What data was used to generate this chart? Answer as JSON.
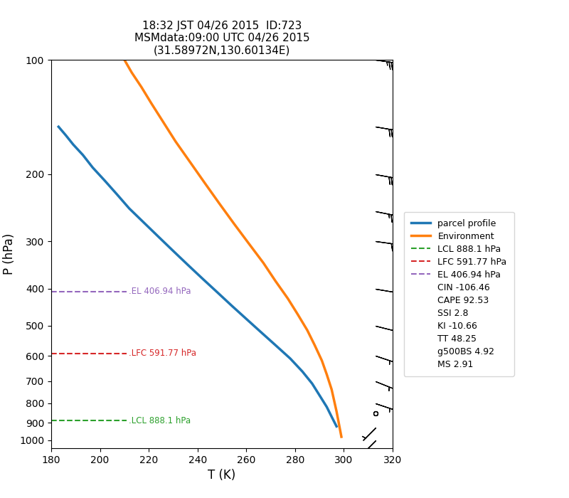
{
  "title_line1": "18:32 JST 04/26 2015  ID:723",
  "title_line2": "MSMdata:09:00 UTC 04/26 2015",
  "title_line3": "(31.58972N,130.60134E)",
  "xlabel": "T (K)",
  "ylabel": "P (hPa)",
  "xlim": [
    180,
    320
  ],
  "ylim_bottom": 1050,
  "ylim_top": 100,
  "parcel_T": [
    183,
    186,
    189,
    193,
    197,
    202,
    207,
    212,
    218,
    224,
    230,
    236,
    242,
    248,
    254,
    260,
    266,
    272,
    278,
    283,
    287,
    290,
    293,
    295,
    297
  ],
  "parcel_P": [
    150,
    158,
    167,
    178,
    192,
    208,
    226,
    246,
    268,
    292,
    318,
    346,
    376,
    408,
    443,
    480,
    520,
    563,
    610,
    660,
    710,
    762,
    818,
    868,
    920
  ],
  "env_T": [
    210,
    213,
    217,
    221,
    226,
    231,
    237,
    243,
    249,
    255,
    261,
    267,
    272,
    277,
    281,
    285,
    288,
    291,
    293,
    295,
    297,
    299
  ],
  "env_P": [
    100,
    108,
    118,
    130,
    146,
    164,
    186,
    211,
    239,
    270,
    304,
    342,
    382,
    424,
    466,
    514,
    562,
    618,
    672,
    736,
    840,
    980
  ],
  "parcel_color": "#1f77b4",
  "env_color": "#ff7f0e",
  "parcel_lw": 2.5,
  "env_lw": 2.5,
  "lcl_p": 888.1,
  "lfc_p": 591.77,
  "el_p": 406.94,
  "lcl_color": "#2ca02c",
  "lfc_color": "#d62728",
  "el_color": "#9467bd",
  "lcl_label": "LCL 888.1 hPa",
  "lfc_label": "LFC 591.77 hPa",
  "el_label": "EL 406.94 hPa",
  "xticks": [
    180,
    200,
    220,
    240,
    260,
    280,
    300,
    320
  ],
  "yticks": [
    100,
    200,
    300,
    400,
    500,
    600,
    700,
    800,
    900,
    1000
  ],
  "legend_texts": [
    "CIN -106.46",
    "CAPE 92.53",
    "SSI 2.8",
    "KI -10.66",
    "TT 48.25",
    "g500BS 4.92",
    "MS 2.91"
  ],
  "wind_barbs": [
    {
      "p": 100,
      "u": -35,
      "v": 5
    },
    {
      "p": 150,
      "u": -30,
      "v": 5
    },
    {
      "p": 200,
      "u": -28,
      "v": 5
    },
    {
      "p": 250,
      "u": -25,
      "v": 5
    },
    {
      "p": 300,
      "u": -22,
      "v": 3
    },
    {
      "p": 400,
      "u": -12,
      "v": 2
    },
    {
      "p": 500,
      "u": -8,
      "v": 2
    },
    {
      "p": 600,
      "u": -6,
      "v": 2
    },
    {
      "p": 700,
      "u": -5,
      "v": 2
    },
    {
      "p": 800,
      "u": -3,
      "v": 1
    },
    {
      "p": 850,
      "u": 0,
      "v": 0
    },
    {
      "p": 925,
      "u": 3,
      "v": 3
    },
    {
      "p": 1000,
      "u": 8,
      "v": 8
    }
  ],
  "barb_x": 313,
  "fig_width": 8.0,
  "fig_height": 7.0,
  "dpi": 100
}
